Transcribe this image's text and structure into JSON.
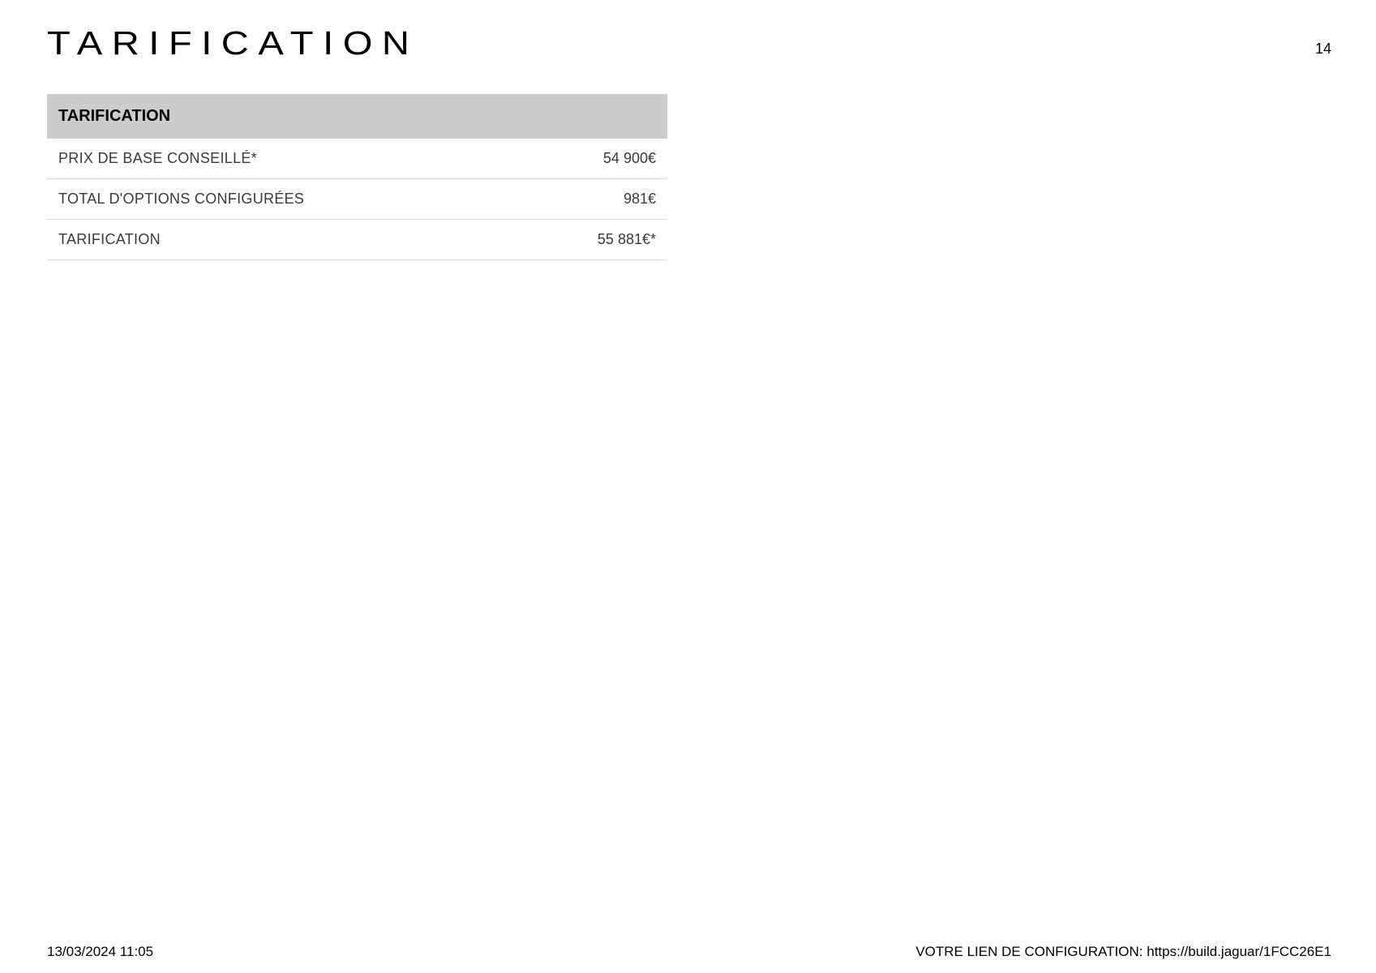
{
  "header": {
    "title": "TARIFICATION",
    "page_number": "14"
  },
  "table": {
    "header": "TARIFICATION",
    "rows": [
      {
        "label": "PRIX DE BASE CONSEILLÉ*",
        "value": "54 900€"
      },
      {
        "label": "TOTAL D'OPTIONS CONFIGURÉES",
        "value": "981€"
      },
      {
        "label": "TARIFICATION",
        "value": "55 881€*"
      }
    ]
  },
  "footer": {
    "date": "13/03/2024 11:05",
    "link_text": "VOTRE LIEN DE CONFIGURATION: https://build.jaguar/1FCC26E1"
  },
  "colors": {
    "background": "#ffffff",
    "header_bg": "#cccccc",
    "text_primary": "#000000",
    "text_secondary": "#3a3a3a",
    "border": "#d8d8d8"
  }
}
